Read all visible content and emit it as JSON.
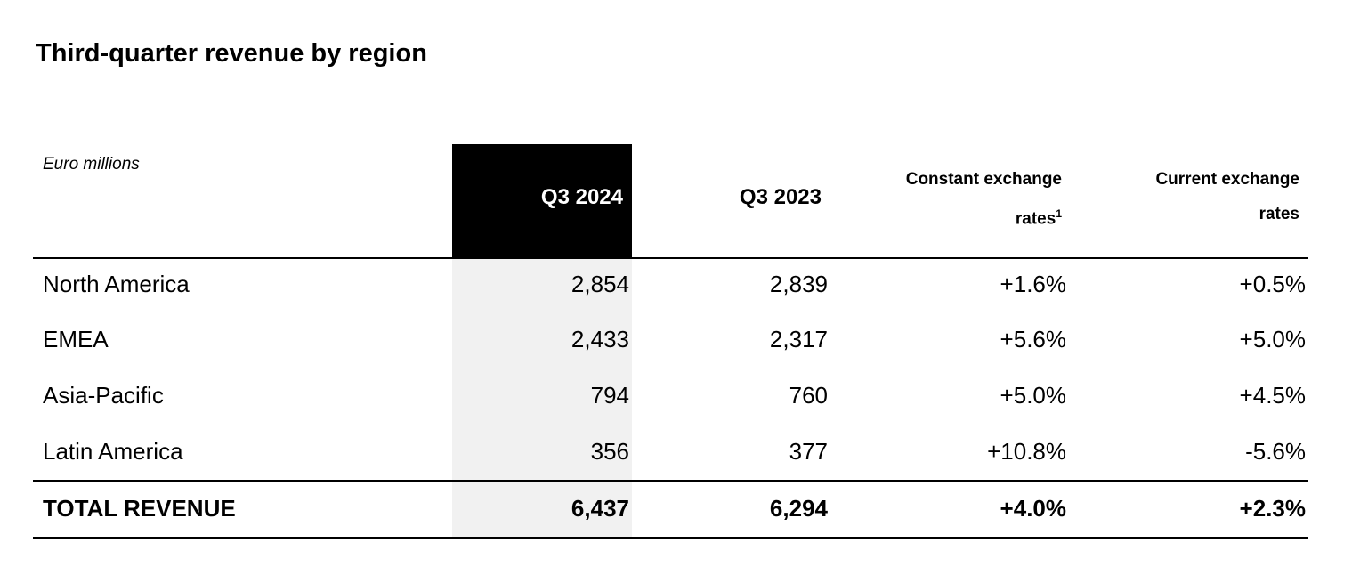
{
  "header": {
    "title": "Third-quarter revenue by region"
  },
  "table": {
    "unit": "Euro millions",
    "columns": [
      {
        "text": "Q3 2024"
      },
      {
        "text": "Q3 2023"
      },
      {
        "text": "Constant exchange rates",
        "footnote": "1"
      },
      {
        "text": "Current exchange rates"
      }
    ],
    "rows": [
      [
        "North America",
        "2,854",
        "2,839",
        "+1.6%",
        "+0.5%"
      ],
      [
        "EMEA",
        "2,433",
        "2,317",
        "+5.6%",
        "+5.0%"
      ],
      [
        "Asia-Pacific",
        "794",
        "760",
        "+5.0%",
        "+4.5%"
      ],
      [
        "Latin America",
        "356",
        "377",
        "+10.8%",
        "-5.6%"
      ]
    ],
    "total": [
      "TOTAL REVENUE",
      "6,437",
      "6,294",
      "+4.0%",
      "+2.3%"
    ]
  }
}
